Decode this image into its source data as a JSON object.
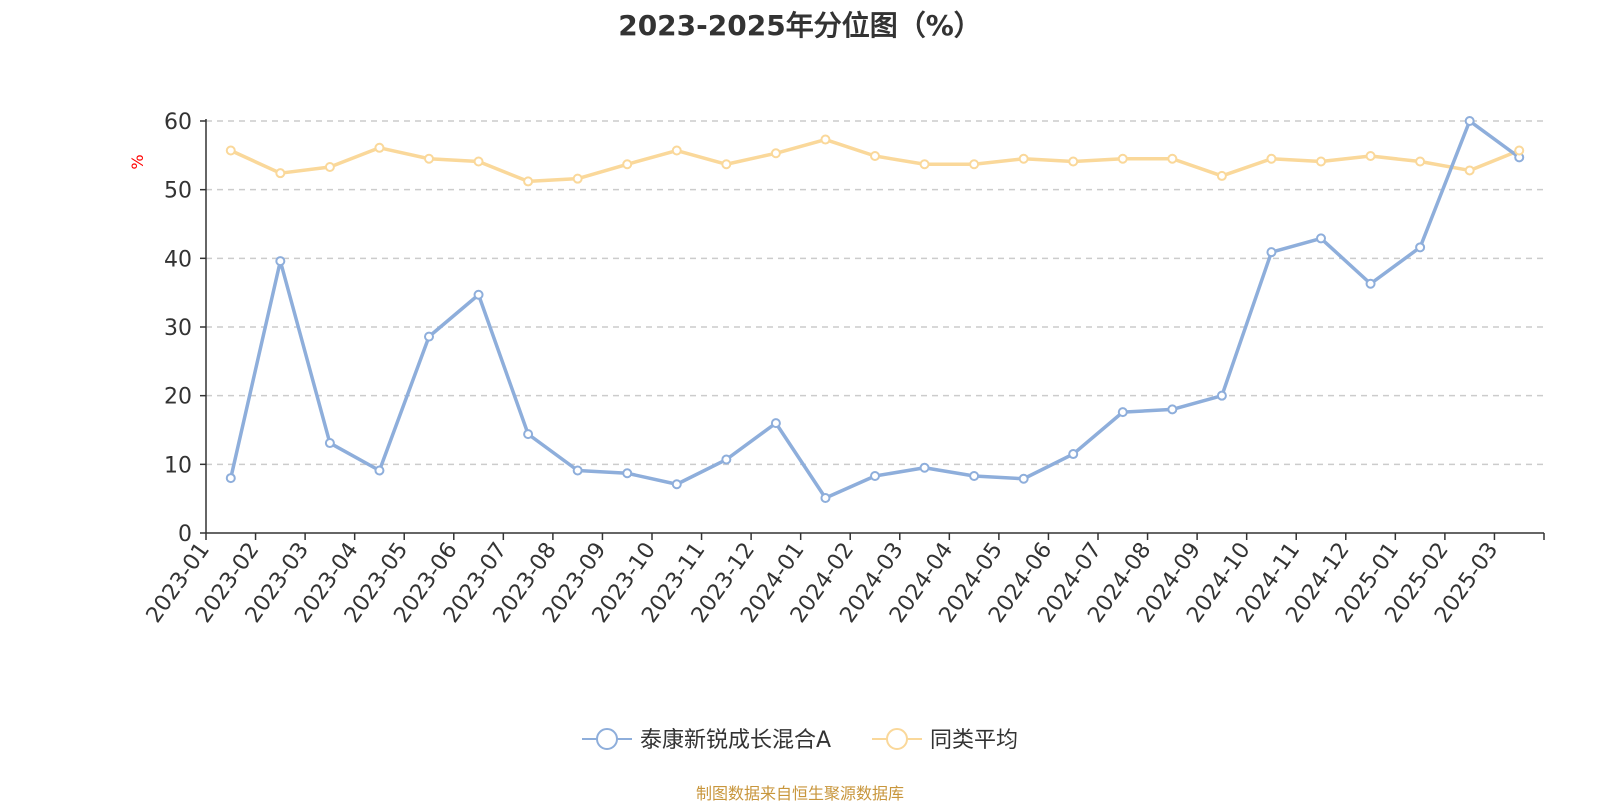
{
  "chart_data": {
    "type": "line",
    "title": "2023-2025年分位图（%）",
    "ylabel": "%",
    "xlabel": "",
    "ylim": [
      0,
      60
    ],
    "yticks": [
      0,
      10,
      20,
      30,
      40,
      50,
      60
    ],
    "grid": true,
    "legend_position": "bottom",
    "categories": [
      "2023-01",
      "2023-02",
      "2023-03",
      "2023-04",
      "2023-05",
      "2023-06",
      "2023-07",
      "2023-08",
      "2023-09",
      "2023-10",
      "2023-11",
      "2023-12",
      "2024-01",
      "2024-02",
      "2024-03",
      "2024-04",
      "2024-05",
      "2024-06",
      "2024-07",
      "2024-08",
      "2024-09",
      "2024-10",
      "2024-11",
      "2024-12",
      "2025-01",
      "2025-02",
      "2025-03"
    ],
    "series": [
      {
        "name": "泰康新锐成长混合A",
        "color": "#8eaedb",
        "values": [
          8.0,
          39.6,
          13.1,
          9.1,
          28.6,
          34.7,
          14.4,
          9.1,
          8.7,
          7.1,
          10.7,
          16.0,
          5.1,
          8.3,
          9.5,
          8.3,
          7.9,
          11.5,
          17.6,
          18.0,
          20.0,
          40.9,
          42.9,
          36.3,
          41.6,
          60.0,
          54.7
        ]
      },
      {
        "name": "同类平均",
        "color": "#fad89a",
        "values": [
          55.7,
          52.4,
          53.3,
          56.1,
          54.5,
          54.1,
          51.2,
          51.6,
          53.7,
          55.7,
          53.7,
          55.3,
          57.3,
          54.9,
          53.7,
          53.7,
          54.5,
          54.1,
          54.5,
          54.5,
          52.0,
          54.5,
          54.1,
          54.9,
          54.1,
          52.8,
          55.7
        ]
      }
    ]
  },
  "source_note": "制图数据来自恒生聚源数据库"
}
